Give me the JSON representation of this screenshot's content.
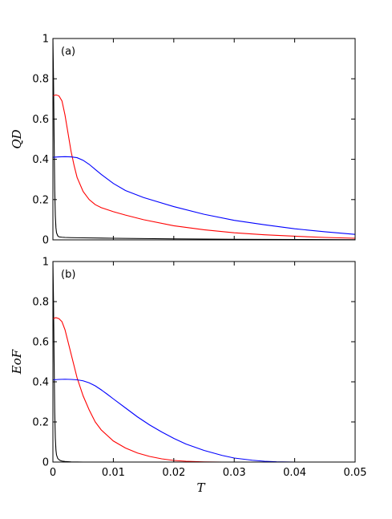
{
  "chart_data": [
    {
      "type": "line",
      "panel_label": "(a)",
      "ylabel": "QD",
      "xlabel": "",
      "xlim": [
        0,
        0.05
      ],
      "ylim": [
        0,
        1
      ],
      "xticks": [
        "0",
        "0.01",
        "0.02",
        "0.03",
        "0.04",
        "0.05"
      ],
      "yticks": [
        "0",
        "0.2",
        "0.4",
        "0.6",
        "0.8",
        "1"
      ],
      "grid": false,
      "series": [
        {
          "color": "#000000",
          "x": [
            0,
            0.0001,
            0.0002,
            0.0003,
            0.0004,
            0.0005,
            0.0006,
            0.0008,
            0.001,
            0.0015,
            0.002,
            0.003,
            0.005,
            0.01,
            0.02,
            0.03,
            0.04,
            0.05
          ],
          "y": [
            1.0,
            0.8,
            0.5,
            0.25,
            0.12,
            0.06,
            0.035,
            0.02,
            0.015,
            0.013,
            0.012,
            0.011,
            0.01,
            0.008,
            0.005,
            0.003,
            0.002,
            0.001
          ]
        },
        {
          "color": "#ff0000",
          "x": [
            0,
            0.0005,
            0.001,
            0.0015,
            0.002,
            0.0025,
            0.003,
            0.0035,
            0.004,
            0.005,
            0.006,
            0.007,
            0.008,
            0.01,
            0.012,
            0.015,
            0.02,
            0.025,
            0.03,
            0.035,
            0.04,
            0.045,
            0.05
          ],
          "y": [
            0.715,
            0.72,
            0.715,
            0.69,
            0.62,
            0.53,
            0.44,
            0.37,
            0.31,
            0.24,
            0.2,
            0.175,
            0.16,
            0.14,
            0.123,
            0.1,
            0.07,
            0.05,
            0.035,
            0.025,
            0.018,
            0.012,
            0.008
          ]
        },
        {
          "color": "#0000ff",
          "x": [
            0,
            0.001,
            0.002,
            0.003,
            0.004,
            0.005,
            0.006,
            0.007,
            0.008,
            0.01,
            0.012,
            0.015,
            0.02,
            0.025,
            0.03,
            0.035,
            0.04,
            0.045,
            0.05
          ],
          "y": [
            0.41,
            0.412,
            0.413,
            0.412,
            0.408,
            0.395,
            0.375,
            0.35,
            0.325,
            0.28,
            0.245,
            0.21,
            0.165,
            0.127,
            0.097,
            0.075,
            0.055,
            0.04,
            0.027
          ]
        }
      ]
    },
    {
      "type": "line",
      "panel_label": "(b)",
      "ylabel": "EoF",
      "xlabel": "T",
      "xlim": [
        0,
        0.05
      ],
      "ylim": [
        0,
        1
      ],
      "xticks": [
        "0",
        "0.01",
        "0.02",
        "0.03",
        "0.04",
        "0.05"
      ],
      "yticks": [
        "0",
        "0.2",
        "0.4",
        "0.6",
        "0.8",
        "1"
      ],
      "grid": false,
      "series": [
        {
          "color": "#000000",
          "x": [
            0,
            0.0001,
            0.0002,
            0.0003,
            0.0004,
            0.0005,
            0.0006,
            0.0008,
            0.001,
            0.0012,
            0.0015,
            0.002,
            0.003,
            0.005,
            0.01,
            0.05
          ],
          "y": [
            1.0,
            0.8,
            0.5,
            0.25,
            0.12,
            0.06,
            0.035,
            0.018,
            0.012,
            0.008,
            0.005,
            0.003,
            0.001,
            0,
            0,
            0
          ]
        },
        {
          "color": "#ff0000",
          "x": [
            0,
            0.0005,
            0.001,
            0.0015,
            0.002,
            0.0025,
            0.003,
            0.0035,
            0.004,
            0.005,
            0.006,
            0.007,
            0.008,
            0.01,
            0.012,
            0.014,
            0.016,
            0.018,
            0.02,
            0.022,
            0.025,
            0.028,
            0.03,
            0.035,
            0.04,
            0.05
          ],
          "y": [
            0.715,
            0.72,
            0.715,
            0.7,
            0.66,
            0.6,
            0.54,
            0.48,
            0.42,
            0.33,
            0.26,
            0.2,
            0.16,
            0.105,
            0.07,
            0.045,
            0.028,
            0.016,
            0.008,
            0.004,
            0.001,
            0,
            0,
            0,
            0,
            0
          ]
        },
        {
          "color": "#0000ff",
          "x": [
            0,
            0.001,
            0.002,
            0.003,
            0.004,
            0.005,
            0.006,
            0.007,
            0.008,
            0.009,
            0.01,
            0.012,
            0.014,
            0.016,
            0.018,
            0.02,
            0.022,
            0.025,
            0.028,
            0.03,
            0.033,
            0.035,
            0.037,
            0.04,
            0.045,
            0.05
          ],
          "y": [
            0.41,
            0.412,
            0.413,
            0.412,
            0.41,
            0.405,
            0.395,
            0.38,
            0.36,
            0.338,
            0.315,
            0.27,
            0.225,
            0.185,
            0.15,
            0.118,
            0.09,
            0.058,
            0.033,
            0.02,
            0.009,
            0.004,
            0.0015,
            0,
            0,
            0
          ]
        }
      ]
    }
  ]
}
